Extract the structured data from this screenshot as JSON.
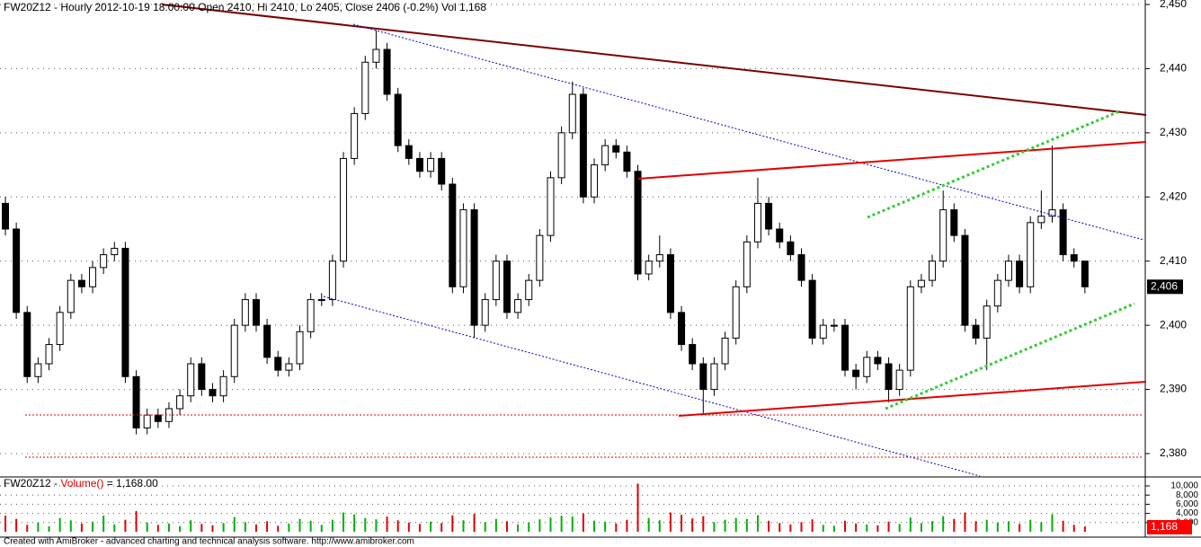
{
  "chart_data": [
    {
      "type": "candlestick",
      "title": "FW20Z12 - Hourly 2012-10-19 18:00:00 Open 2410, Hi 2410, Lo 2405, Close 2406 (-0.2%) Vol 1,168",
      "open": [
        2419,
        2415,
        2402,
        2392,
        2394,
        2397,
        2402,
        2407,
        2406,
        2409,
        2411,
        2412,
        2392,
        2384,
        2386,
        2385,
        2387,
        2389,
        2394,
        2390,
        2389,
        2392,
        2400,
        2404,
        2400,
        2395,
        2393,
        2394,
        2399,
        2404,
        2404,
        2410,
        2426,
        2433,
        2441,
        2443,
        2436,
        2428,
        2426,
        2424,
        2426,
        2422,
        2406,
        2418,
        2400,
        2404,
        2410,
        2402,
        2404,
        2407,
        2414,
        2423,
        2430,
        2436,
        2420,
        2425,
        2428,
        2427,
        2424,
        2408,
        2410,
        2411,
        2402,
        2397,
        2394,
        2390,
        2394,
        2398,
        2406,
        2413,
        2419,
        2415,
        2413,
        2411,
        2407,
        2398,
        2400,
        2400,
        2393,
        2392,
        2395,
        2394,
        2390,
        2393,
        2406,
        2407,
        2410,
        2418,
        2414,
        2400,
        2398,
        2403,
        2407,
        2410,
        2406,
        2416,
        2417,
        2418,
        2411,
        2410
      ],
      "high": [
        2420,
        2416,
        2403,
        2395,
        2398,
        2403,
        2408,
        2408,
        2410,
        2412,
        2413,
        2413,
        2393,
        2387,
        2387,
        2388,
        2390,
        2395,
        2395,
        2391,
        2393,
        2401,
        2405,
        2405,
        2401,
        2396,
        2395,
        2400,
        2405,
        2405,
        2411,
        2427,
        2434,
        2442,
        2446,
        2444,
        2437,
        2429,
        2427,
        2427,
        2427,
        2423,
        2419,
        2419,
        2405,
        2411,
        2411,
        2405,
        2408,
        2415,
        2424,
        2431,
        2438,
        2437,
        2426,
        2429,
        2429,
        2428,
        2425,
        2411,
        2414,
        2412,
        2403,
        2398,
        2395,
        2395,
        2399,
        2407,
        2414,
        2423,
        2420,
        2416,
        2414,
        2412,
        2408,
        2401,
        2401,
        2401,
        2394,
        2396,
        2396,
        2395,
        2394,
        2407,
        2408,
        2411,
        2421,
        2419,
        2415,
        2401,
        2404,
        2408,
        2411,
        2411,
        2417,
        2421,
        2428,
        2419,
        2412,
        2410
      ],
      "low": [
        2414,
        2401,
        2391,
        2391,
        2393,
        2396,
        2401,
        2405,
        2405,
        2408,
        2410,
        2391,
        2383,
        2383,
        2384,
        2384,
        2386,
        2388,
        2389,
        2388,
        2388,
        2391,
        2399,
        2399,
        2394,
        2392,
        2392,
        2393,
        2398,
        2403,
        2403,
        2409,
        2425,
        2432,
        2440,
        2435,
        2427,
        2425,
        2423,
        2423,
        2421,
        2405,
        2405,
        2398,
        2399,
        2403,
        2401,
        2401,
        2403,
        2406,
        2413,
        2422,
        2429,
        2419,
        2419,
        2424,
        2426,
        2423,
        2407,
        2407,
        2409,
        2401,
        2396,
        2393,
        2386,
        2389,
        2393,
        2397,
        2405,
        2412,
        2414,
        2412,
        2410,
        2406,
        2397,
        2397,
        2399,
        2392,
        2390,
        2391,
        2393,
        2388,
        2389,
        2392,
        2405,
        2406,
        2409,
        2413,
        2399,
        2397,
        2393,
        2402,
        2406,
        2405,
        2405,
        2415,
        2416,
        2410,
        2409,
        2405
      ],
      "close": [
        2415,
        2402,
        2392,
        2394,
        2397,
        2402,
        2407,
        2406,
        2409,
        2411,
        2412,
        2392,
        2384,
        2386,
        2385,
        2387,
        2389,
        2394,
        2390,
        2389,
        2392,
        2400,
        2404,
        2400,
        2395,
        2393,
        2394,
        2399,
        2404,
        2404,
        2410,
        2426,
        2433,
        2441,
        2443,
        2436,
        2428,
        2426,
        2424,
        2426,
        2422,
        2406,
        2418,
        2400,
        2404,
        2410,
        2402,
        2404,
        2407,
        2414,
        2423,
        2430,
        2436,
        2420,
        2425,
        2428,
        2427,
        2424,
        2408,
        2410,
        2411,
        2402,
        2397,
        2394,
        2390,
        2394,
        2398,
        2406,
        2413,
        2419,
        2415,
        2413,
        2411,
        2407,
        2398,
        2400,
        2400,
        2393,
        2392,
        2395,
        2394,
        2390,
        2393,
        2406,
        2407,
        2410,
        2418,
        2414,
        2400,
        2398,
        2403,
        2407,
        2410,
        2406,
        2416,
        2417,
        2418,
        2411,
        2410,
        2406
      ],
      "close_label": "2,406",
      "up_color": "#ffffff",
      "down_color": "#000000",
      "ylim": [
        2376.5,
        2450.7
      ],
      "yticks": [
        {
          "value": 2380,
          "label": "2,380"
        },
        {
          "value": 2390,
          "label": "2,390"
        },
        {
          "value": 2400,
          "label": "2,400"
        },
        {
          "value": 2410,
          "label": "2,410"
        },
        {
          "value": 2420,
          "label": "2,420"
        },
        {
          "value": 2430,
          "label": "2,430"
        },
        {
          "value": 2440,
          "label": "2,440"
        },
        {
          "value": 2450,
          "label": "2,450"
        }
      ],
      "grid": true
    },
    {
      "type": "bar",
      "title_prefix": "FW20Z12 - ",
      "title_indicator": "Volume()",
      "title_suffix": " = 1,168.00",
      "values": [
        3500,
        2800,
        1500,
        2000,
        1200,
        3000,
        2500,
        1800,
        2200,
        3500,
        1600,
        2600,
        4500,
        2000,
        1500,
        1800,
        1200,
        2500,
        1700,
        1400,
        1900,
        3200,
        2100,
        1600,
        2300,
        1300,
        1800,
        2800,
        2400,
        1500,
        2600,
        4200,
        3800,
        3000,
        2700,
        3300,
        2500,
        2000,
        1700,
        2200,
        1900,
        3600,
        2500,
        3900,
        2100,
        2800,
        2300,
        1600,
        2000,
        2700,
        3100,
        3500,
        3300,
        4000,
        2400,
        2200,
        1800,
        2600,
        10500,
        3000,
        2500,
        4200,
        3700,
        2900,
        3400,
        2100,
        2600,
        3000,
        2800,
        3600,
        2400,
        1900,
        1600,
        2100,
        2700,
        1500,
        1300,
        2400,
        1800,
        1600,
        1400,
        2200,
        1700,
        3100,
        1900,
        2300,
        3400,
        2800,
        4200,
        2300,
        2600,
        2000,
        2300,
        1700,
        2600,
        2100,
        3800,
        2400,
        1500,
        1168
      ],
      "last_label": "1,168",
      "up_color": "#00b000",
      "down_color": "#e00000",
      "ylim": [
        0,
        11765
      ],
      "yticks": [
        {
          "value": 2000,
          "label": "2,000"
        },
        {
          "value": 4000,
          "label": "4,000"
        },
        {
          "value": 6000,
          "label": "6,000"
        },
        {
          "value": 8000,
          "label": "8,000"
        },
        {
          "value": 10000,
          "label": "10,000"
        }
      ],
      "grid": true
    }
  ],
  "footer": "Created with AmiBroker - advanced charting and technical analysis software. http://www.amibroker.com"
}
